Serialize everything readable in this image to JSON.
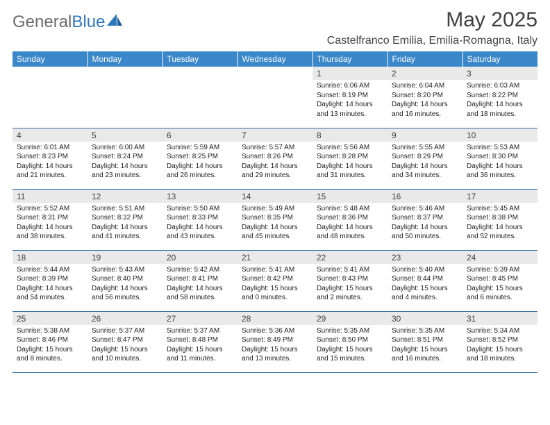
{
  "brand": {
    "part1": "General",
    "part2": "Blue"
  },
  "title": "May 2025",
  "location": "Castelfranco Emilia, Emilia-Romagna, Italy",
  "colors": {
    "header_bg": "#3a87c9",
    "header_text": "#ffffff",
    "daynum_bg": "#e9e9e9",
    "rule": "#2f6ea8",
    "brand_gray": "#6a6a6a",
    "brand_blue": "#2f78bd"
  },
  "dayNames": [
    "Sunday",
    "Monday",
    "Tuesday",
    "Wednesday",
    "Thursday",
    "Friday",
    "Saturday"
  ],
  "weeks": [
    [
      {
        "n": "",
        "sr": "",
        "ss": "",
        "dl": ""
      },
      {
        "n": "",
        "sr": "",
        "ss": "",
        "dl": ""
      },
      {
        "n": "",
        "sr": "",
        "ss": "",
        "dl": ""
      },
      {
        "n": "",
        "sr": "",
        "ss": "",
        "dl": ""
      },
      {
        "n": "1",
        "sr": "Sunrise: 6:06 AM",
        "ss": "Sunset: 8:19 PM",
        "dl": "Daylight: 14 hours and 13 minutes."
      },
      {
        "n": "2",
        "sr": "Sunrise: 6:04 AM",
        "ss": "Sunset: 8:20 PM",
        "dl": "Daylight: 14 hours and 16 minutes."
      },
      {
        "n": "3",
        "sr": "Sunrise: 6:03 AM",
        "ss": "Sunset: 8:22 PM",
        "dl": "Daylight: 14 hours and 18 minutes."
      }
    ],
    [
      {
        "n": "4",
        "sr": "Sunrise: 6:01 AM",
        "ss": "Sunset: 8:23 PM",
        "dl": "Daylight: 14 hours and 21 minutes."
      },
      {
        "n": "5",
        "sr": "Sunrise: 6:00 AM",
        "ss": "Sunset: 8:24 PM",
        "dl": "Daylight: 14 hours and 23 minutes."
      },
      {
        "n": "6",
        "sr": "Sunrise: 5:59 AM",
        "ss": "Sunset: 8:25 PM",
        "dl": "Daylight: 14 hours and 26 minutes."
      },
      {
        "n": "7",
        "sr": "Sunrise: 5:57 AM",
        "ss": "Sunset: 8:26 PM",
        "dl": "Daylight: 14 hours and 29 minutes."
      },
      {
        "n": "8",
        "sr": "Sunrise: 5:56 AM",
        "ss": "Sunset: 8:28 PM",
        "dl": "Daylight: 14 hours and 31 minutes."
      },
      {
        "n": "9",
        "sr": "Sunrise: 5:55 AM",
        "ss": "Sunset: 8:29 PM",
        "dl": "Daylight: 14 hours and 34 minutes."
      },
      {
        "n": "10",
        "sr": "Sunrise: 5:53 AM",
        "ss": "Sunset: 8:30 PM",
        "dl": "Daylight: 14 hours and 36 minutes."
      }
    ],
    [
      {
        "n": "11",
        "sr": "Sunrise: 5:52 AM",
        "ss": "Sunset: 8:31 PM",
        "dl": "Daylight: 14 hours and 38 minutes."
      },
      {
        "n": "12",
        "sr": "Sunrise: 5:51 AM",
        "ss": "Sunset: 8:32 PM",
        "dl": "Daylight: 14 hours and 41 minutes."
      },
      {
        "n": "13",
        "sr": "Sunrise: 5:50 AM",
        "ss": "Sunset: 8:33 PM",
        "dl": "Daylight: 14 hours and 43 minutes."
      },
      {
        "n": "14",
        "sr": "Sunrise: 5:49 AM",
        "ss": "Sunset: 8:35 PM",
        "dl": "Daylight: 14 hours and 45 minutes."
      },
      {
        "n": "15",
        "sr": "Sunrise: 5:48 AM",
        "ss": "Sunset: 8:36 PM",
        "dl": "Daylight: 14 hours and 48 minutes."
      },
      {
        "n": "16",
        "sr": "Sunrise: 5:46 AM",
        "ss": "Sunset: 8:37 PM",
        "dl": "Daylight: 14 hours and 50 minutes."
      },
      {
        "n": "17",
        "sr": "Sunrise: 5:45 AM",
        "ss": "Sunset: 8:38 PM",
        "dl": "Daylight: 14 hours and 52 minutes."
      }
    ],
    [
      {
        "n": "18",
        "sr": "Sunrise: 5:44 AM",
        "ss": "Sunset: 8:39 PM",
        "dl": "Daylight: 14 hours and 54 minutes."
      },
      {
        "n": "19",
        "sr": "Sunrise: 5:43 AM",
        "ss": "Sunset: 8:40 PM",
        "dl": "Daylight: 14 hours and 56 minutes."
      },
      {
        "n": "20",
        "sr": "Sunrise: 5:42 AM",
        "ss": "Sunset: 8:41 PM",
        "dl": "Daylight: 14 hours and 58 minutes."
      },
      {
        "n": "21",
        "sr": "Sunrise: 5:41 AM",
        "ss": "Sunset: 8:42 PM",
        "dl": "Daylight: 15 hours and 0 minutes."
      },
      {
        "n": "22",
        "sr": "Sunrise: 5:41 AM",
        "ss": "Sunset: 8:43 PM",
        "dl": "Daylight: 15 hours and 2 minutes."
      },
      {
        "n": "23",
        "sr": "Sunrise: 5:40 AM",
        "ss": "Sunset: 8:44 PM",
        "dl": "Daylight: 15 hours and 4 minutes."
      },
      {
        "n": "24",
        "sr": "Sunrise: 5:39 AM",
        "ss": "Sunset: 8:45 PM",
        "dl": "Daylight: 15 hours and 6 minutes."
      }
    ],
    [
      {
        "n": "25",
        "sr": "Sunrise: 5:38 AM",
        "ss": "Sunset: 8:46 PM",
        "dl": "Daylight: 15 hours and 8 minutes."
      },
      {
        "n": "26",
        "sr": "Sunrise: 5:37 AM",
        "ss": "Sunset: 8:47 PM",
        "dl": "Daylight: 15 hours and 10 minutes."
      },
      {
        "n": "27",
        "sr": "Sunrise: 5:37 AM",
        "ss": "Sunset: 8:48 PM",
        "dl": "Daylight: 15 hours and 11 minutes."
      },
      {
        "n": "28",
        "sr": "Sunrise: 5:36 AM",
        "ss": "Sunset: 8:49 PM",
        "dl": "Daylight: 15 hours and 13 minutes."
      },
      {
        "n": "29",
        "sr": "Sunrise: 5:35 AM",
        "ss": "Sunset: 8:50 PM",
        "dl": "Daylight: 15 hours and 15 minutes."
      },
      {
        "n": "30",
        "sr": "Sunrise: 5:35 AM",
        "ss": "Sunset: 8:51 PM",
        "dl": "Daylight: 15 hours and 16 minutes."
      },
      {
        "n": "31",
        "sr": "Sunrise: 5:34 AM",
        "ss": "Sunset: 8:52 PM",
        "dl": "Daylight: 15 hours and 18 minutes."
      }
    ]
  ]
}
